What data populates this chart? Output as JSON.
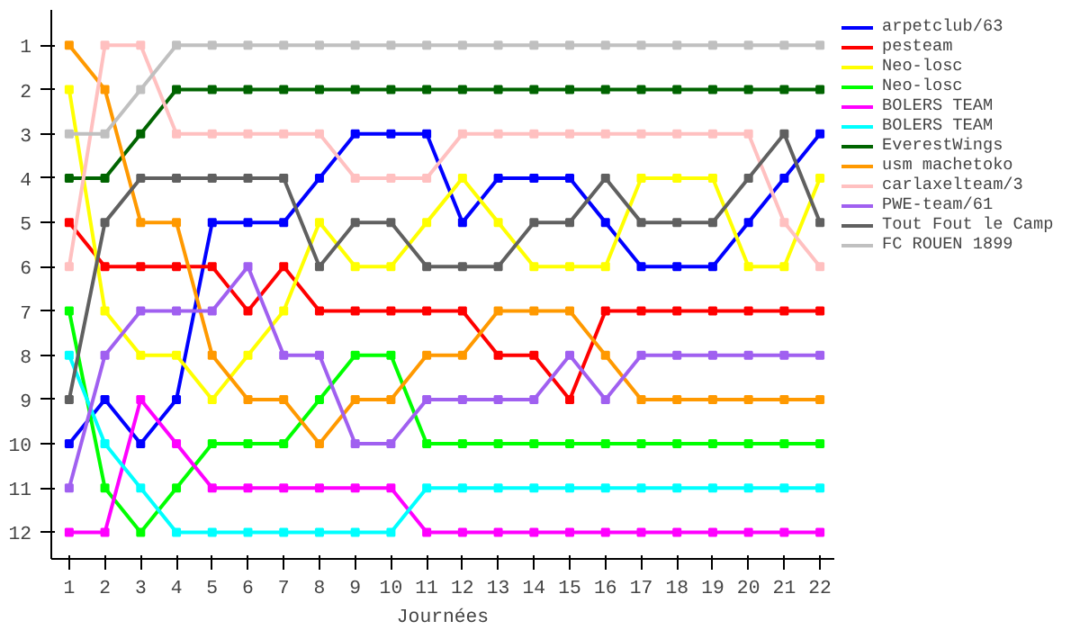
{
  "chart_data": {
    "type": "line",
    "xlabel": "Journées",
    "x": [
      1,
      2,
      3,
      4,
      5,
      6,
      7,
      8,
      9,
      10,
      11,
      12,
      13,
      14,
      15,
      16,
      17,
      18,
      19,
      20,
      21,
      22
    ],
    "xlim": [
      0.5,
      22.4
    ],
    "xticks": [
      1,
      2,
      3,
      4,
      5,
      6,
      7,
      8,
      9,
      10,
      11,
      12,
      13,
      14,
      15,
      16,
      17,
      18,
      19,
      20,
      21,
      22
    ],
    "ylim": [
      12.6,
      0.2
    ],
    "yticks": [
      1,
      2,
      3,
      4,
      5,
      6,
      7,
      8,
      9,
      10,
      11,
      12
    ],
    "grid": false,
    "legend": "right",
    "marker": "square",
    "line_style": "solid",
    "series": [
      {
        "name": "arpetclub/63",
        "color": "#0000ff",
        "values": [
          10,
          9,
          10,
          9,
          5,
          5,
          5,
          4,
          3,
          3,
          3,
          5,
          4,
          4,
          4,
          5,
          6,
          6,
          6,
          5,
          4,
          3
        ]
      },
      {
        "name": "pesteam",
        "color": "#ff0000",
        "values": [
          5,
          6,
          6,
          6,
          6,
          7,
          6,
          7,
          7,
          7,
          7,
          7,
          8,
          8,
          9,
          7,
          7,
          7,
          7,
          7,
          7,
          7
        ]
      },
      {
        "name": "Neo-losc",
        "color": "#ffff00",
        "values": [
          2,
          7,
          8,
          8,
          9,
          8,
          7,
          5,
          6,
          6,
          5,
          4,
          5,
          6,
          6,
          6,
          4,
          4,
          4,
          6,
          6,
          4
        ]
      },
      {
        "name": "Neo-losc",
        "color": "#00ff00",
        "values": [
          7,
          11,
          12,
          11,
          10,
          10,
          10,
          9,
          8,
          8,
          10,
          10,
          10,
          10,
          10,
          10,
          10,
          10,
          10,
          10,
          10,
          10
        ]
      },
      {
        "name": "BOLERS TEAM",
        "color": "#ff00ff",
        "values": [
          12,
          12,
          9,
          10,
          11,
          11,
          11,
          11,
          11,
          11,
          12,
          12,
          12,
          12,
          12,
          12,
          12,
          12,
          12,
          12,
          12,
          12
        ]
      },
      {
        "name": "BOLERS TEAM",
        "color": "#00ffff",
        "values": [
          8,
          10,
          11,
          12,
          12,
          12,
          12,
          12,
          12,
          12,
          11,
          11,
          11,
          11,
          11,
          11,
          11,
          11,
          11,
          11,
          11,
          11
        ]
      },
      {
        "name": "EverestWings",
        "color": "#006400",
        "values": [
          4,
          4,
          3,
          2,
          2,
          2,
          2,
          2,
          2,
          2,
          2,
          2,
          2,
          2,
          2,
          2,
          2,
          2,
          2,
          2,
          2,
          2
        ]
      },
      {
        "name": "usm machetoko",
        "color": "#ff9900",
        "values": [
          1,
          2,
          5,
          5,
          8,
          9,
          9,
          10,
          9,
          9,
          8,
          8,
          7,
          7,
          7,
          8,
          9,
          9,
          9,
          9,
          9,
          9
        ]
      },
      {
        "name": "carlaxelteam/3",
        "color": "#ffc0c0",
        "values": [
          6,
          1,
          1,
          3,
          3,
          3,
          3,
          3,
          4,
          4,
          4,
          3,
          3,
          3,
          3,
          3,
          3,
          3,
          3,
          3,
          5,
          6
        ]
      },
      {
        "name": "PWE-team/61",
        "color": "#a060f0",
        "values": [
          11,
          8,
          7,
          7,
          7,
          6,
          8,
          8,
          10,
          10,
          9,
          9,
          9,
          9,
          8,
          9,
          8,
          8,
          8,
          8,
          8,
          8
        ]
      },
      {
        "name": "Tout Fout le Camp",
        "color": "#606060",
        "values": [
          9,
          5,
          4,
          4,
          4,
          4,
          4,
          6,
          5,
          5,
          6,
          6,
          6,
          5,
          5,
          4,
          5,
          5,
          5,
          4,
          3,
          5
        ]
      },
      {
        "name": "FC ROUEN 1899",
        "color": "#c0c0c0",
        "values": [
          3,
          3,
          2,
          1,
          1,
          1,
          1,
          1,
          1,
          1,
          1,
          1,
          1,
          1,
          1,
          1,
          1,
          1,
          1,
          1,
          1,
          1
        ]
      }
    ]
  }
}
